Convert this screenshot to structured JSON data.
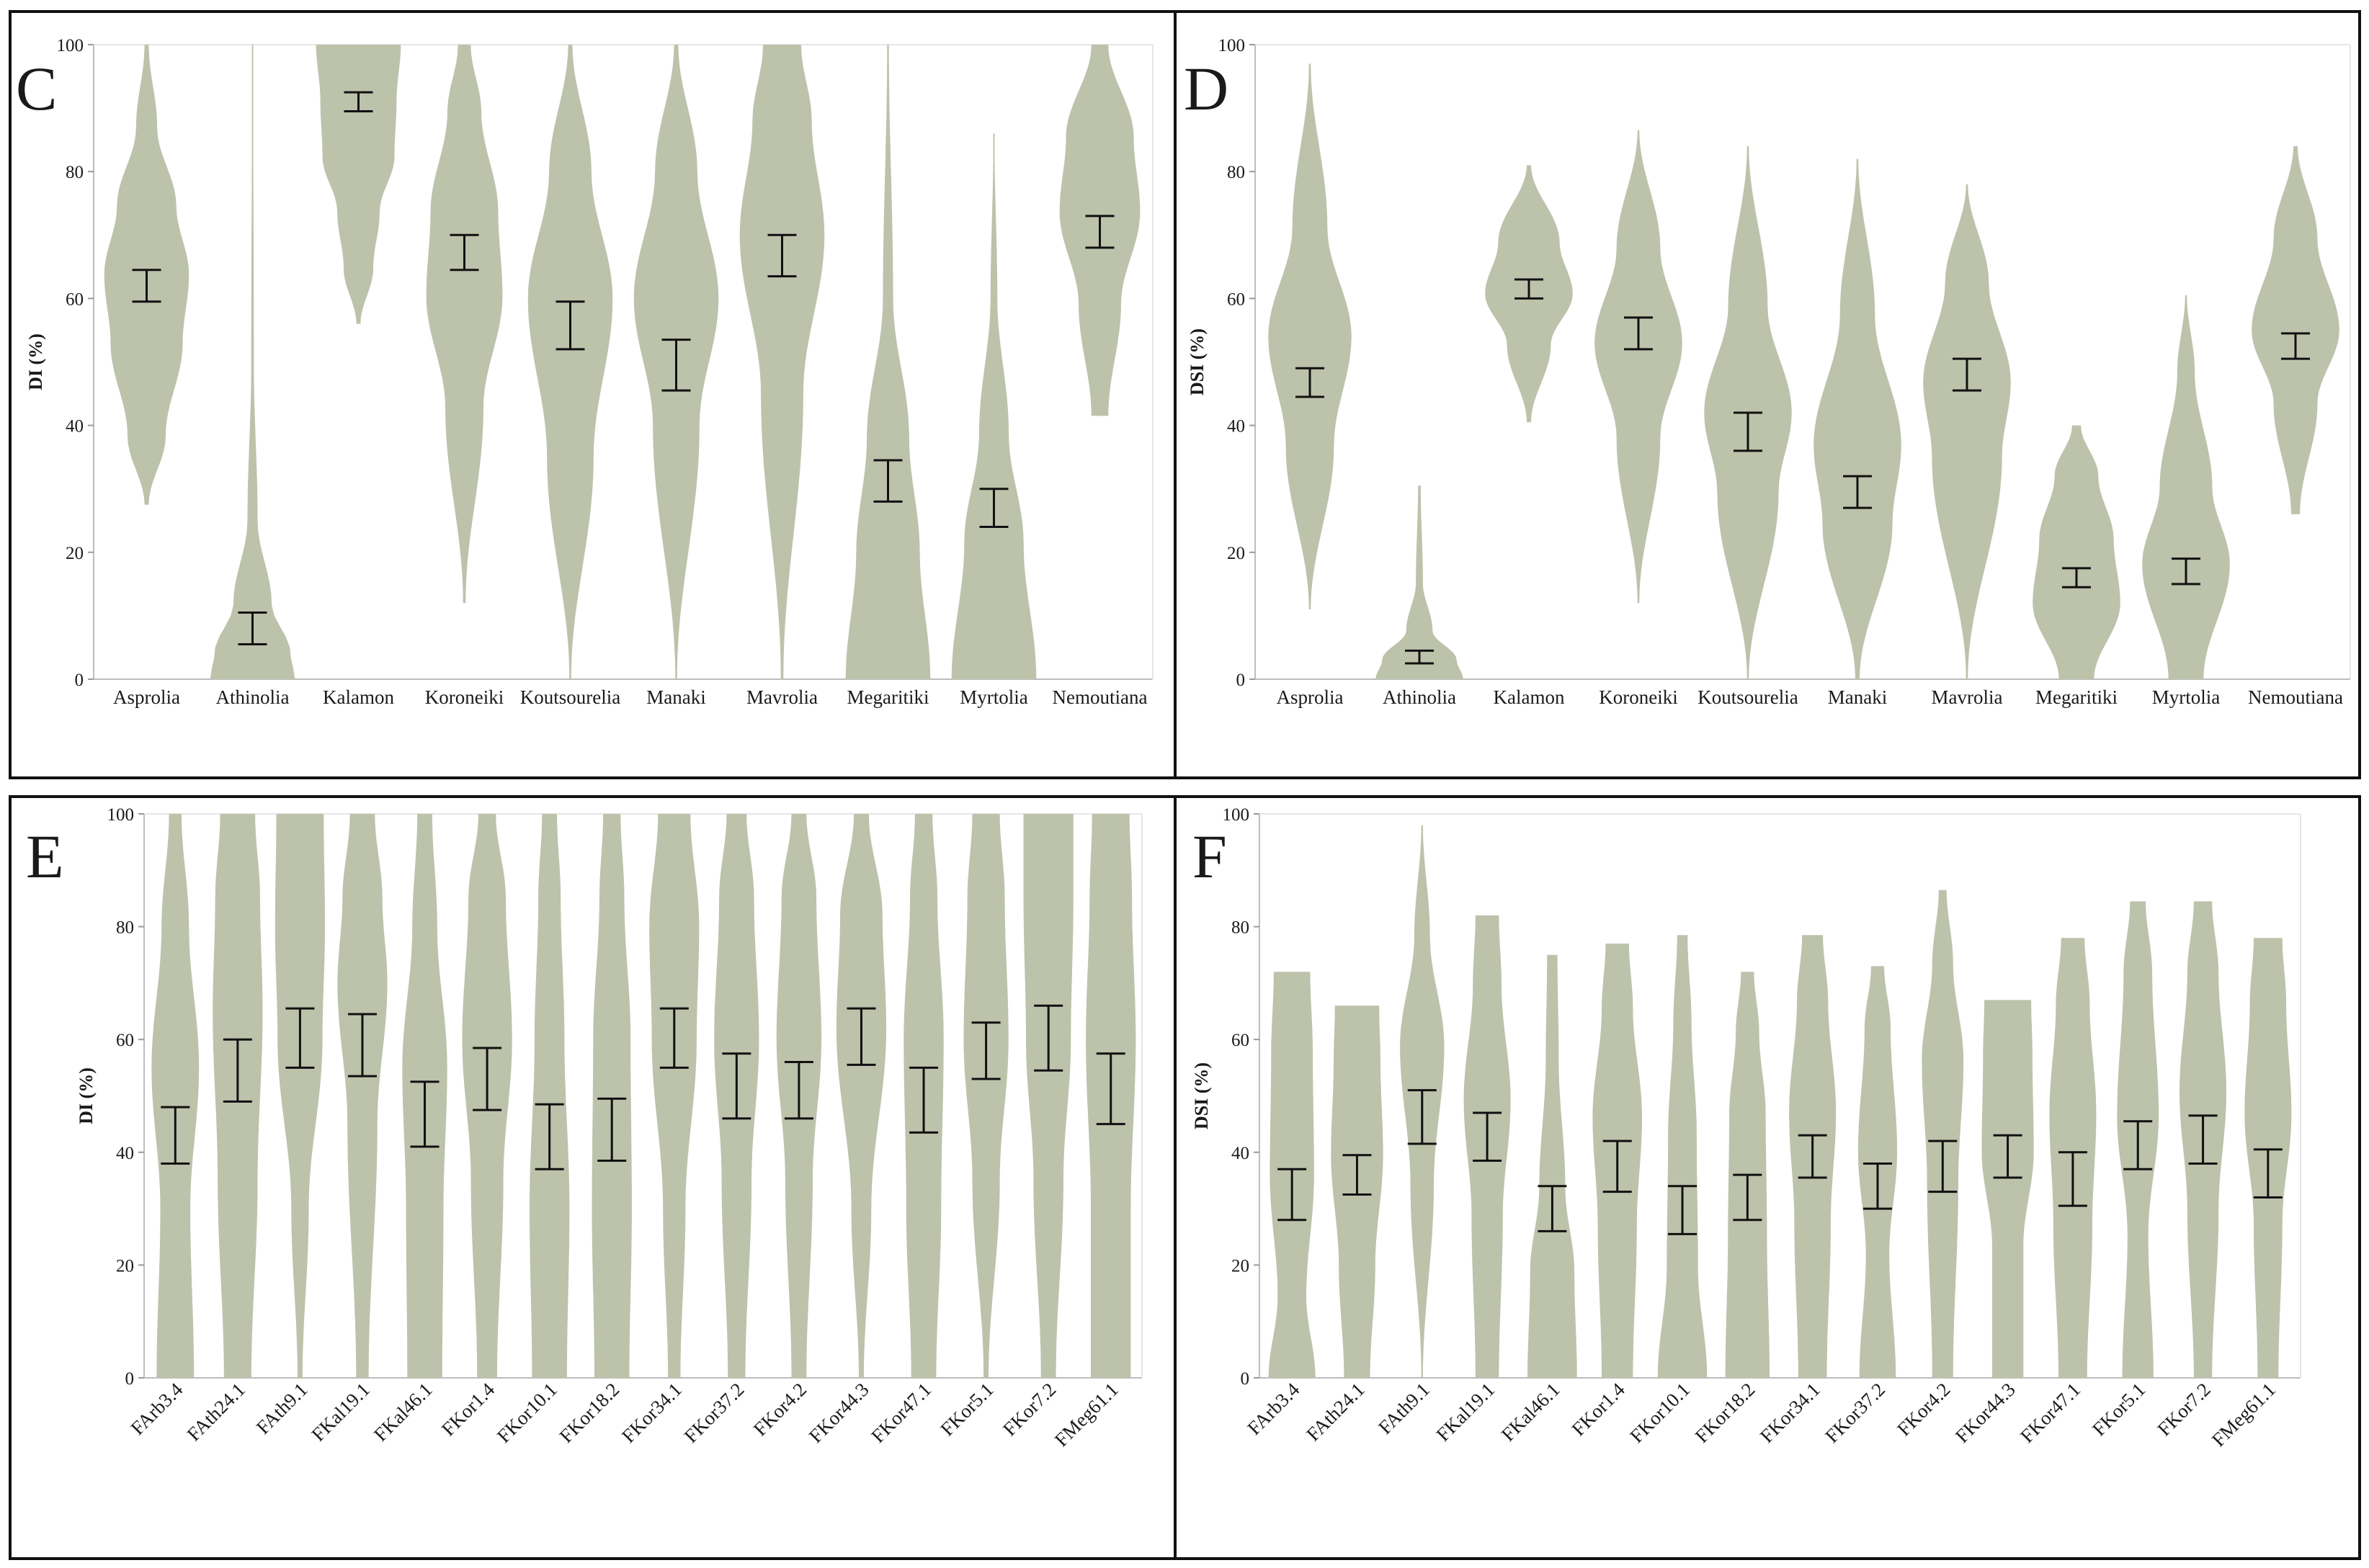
{
  "figure": {
    "violin_color": "#bdc2ab",
    "errorbar_color": "#111111",
    "frame_color": "#111111"
  },
  "chart_data": [
    {
      "panel": "C",
      "type": "violin",
      "ylabel": "DI (%)",
      "ylim": [
        0,
        100
      ],
      "yticks": [
        "0",
        "20",
        "40",
        "60",
        "80",
        "100"
      ],
      "categories": [
        "Asprolia",
        "Athinolia",
        "Kalamon",
        "Koroneiki",
        "Koutsourelia",
        "Manaki",
        "Mavrolia",
        "Megaritiki",
        "Myrtolia",
        "Nemoutiana"
      ],
      "ranges": [
        [
          27.5,
          100
        ],
        [
          0,
          100
        ],
        [
          56,
          100
        ],
        [
          12,
          100
        ],
        [
          0,
          100
        ],
        [
          0,
          100
        ],
        [
          0,
          100
        ],
        [
          0,
          100
        ],
        [
          0,
          86
        ],
        [
          41.5,
          100
        ]
      ],
      "error_bars": [
        [
          59.5,
          64.5
        ],
        [
          5.5,
          10.5
        ],
        [
          89.5,
          92.5
        ],
        [
          64.5,
          70
        ],
        [
          52,
          59.5
        ],
        [
          45.5,
          53.5
        ],
        [
          63.5,
          70
        ],
        [
          28,
          34.5
        ],
        [
          24,
          30
        ],
        [
          68,
          73
        ]
      ]
    },
    {
      "panel": "D",
      "type": "violin",
      "ylabel": "DSI (%)",
      "ylim": [
        0,
        100
      ],
      "yticks": [
        "0",
        "20",
        "40",
        "60",
        "80",
        "100"
      ],
      "categories": [
        "Asprolia",
        "Athinolia",
        "Kalamon",
        "Koroneiki",
        "Koutsourelia",
        "Manaki",
        "Mavrolia",
        "Megaritiki",
        "Myrtolia",
        "Nemoutiana"
      ],
      "ranges": [
        [
          11,
          97
        ],
        [
          0,
          30.5
        ],
        [
          40.5,
          81
        ],
        [
          12,
          86.5
        ],
        [
          0,
          84
        ],
        [
          0,
          82
        ],
        [
          0,
          78
        ],
        [
          0,
          40
        ],
        [
          0,
          60.5
        ],
        [
          26,
          84
        ]
      ],
      "error_bars": [
        [
          44.5,
          49
        ],
        [
          2.5,
          4.5
        ],
        [
          60,
          63
        ],
        [
          52,
          57
        ],
        [
          36,
          42
        ],
        [
          27,
          32
        ],
        [
          45.5,
          50.5
        ],
        [
          14.5,
          17.5
        ],
        [
          15,
          19
        ],
        [
          50.5,
          54.5
        ]
      ]
    },
    {
      "panel": "E",
      "type": "violin",
      "ylabel": "DI (%)",
      "ylim": [
        0,
        100
      ],
      "yticks": [
        "0",
        "20",
        "40",
        "60",
        "80",
        "100"
      ],
      "categories": [
        "FArb3.4",
        "FAth24.1",
        "FAth9.1",
        "FKal19.1",
        "FKal46.1",
        "FKor1.4",
        "FKor10.1",
        "FKor18.2",
        "FKor34.1",
        "FKor37.2",
        "FKor4.2",
        "FKor44.3",
        "FKor47.1",
        "FKor5.1",
        "FKor7.2",
        "FMeg61.1"
      ],
      "ranges": [
        [
          0,
          100
        ],
        [
          0,
          100
        ],
        [
          0,
          100
        ],
        [
          0,
          100
        ],
        [
          0,
          100
        ],
        [
          0,
          100
        ],
        [
          0,
          100
        ],
        [
          0,
          100
        ],
        [
          0,
          100
        ],
        [
          0,
          100
        ],
        [
          0,
          100
        ],
        [
          0,
          100
        ],
        [
          0,
          100
        ],
        [
          0,
          100
        ],
        [
          0,
          100
        ],
        [
          0,
          100
        ]
      ],
      "error_bars": [
        [
          38,
          48
        ],
        [
          49,
          60
        ],
        [
          55,
          65.5
        ],
        [
          53.5,
          64.5
        ],
        [
          41,
          52.5
        ],
        [
          47.5,
          58.5
        ],
        [
          37,
          48.5
        ],
        [
          38.5,
          49.5
        ],
        [
          55,
          65.5
        ],
        [
          46,
          57.5
        ],
        [
          46,
          56
        ],
        [
          55.5,
          65.5
        ],
        [
          43.5,
          55
        ],
        [
          53,
          63
        ],
        [
          54.5,
          66
        ],
        [
          45,
          57.5
        ]
      ]
    },
    {
      "panel": "F",
      "type": "violin",
      "ylabel": "DSI (%)",
      "ylim": [
        0,
        100
      ],
      "yticks": [
        "0",
        "20",
        "40",
        "60",
        "80",
        "100"
      ],
      "categories": [
        "FArb3.4",
        "FAth24.1",
        "FAth9.1",
        "FKal19.1",
        "FKal46.1",
        "FKor1.4",
        "FKor10.1",
        "FKor18.2",
        "FKor34.1",
        "FKor37.2",
        "FKor4.2",
        "FKor44.3",
        "FKor47.1",
        "FKor5.1",
        "FKor7.2",
        "FMeg61.1"
      ],
      "ranges": [
        [
          0,
          72
        ],
        [
          0,
          66
        ],
        [
          0,
          98
        ],
        [
          0,
          82
        ],
        [
          0,
          75
        ],
        [
          0,
          77
        ],
        [
          0,
          78.5
        ],
        [
          0,
          72
        ],
        [
          0,
          78.5
        ],
        [
          0,
          73
        ],
        [
          0,
          86.5
        ],
        [
          0,
          67
        ],
        [
          0,
          78
        ],
        [
          0,
          84.5
        ],
        [
          0,
          84.5
        ],
        [
          0,
          78
        ]
      ],
      "error_bars": [
        [
          28,
          37
        ],
        [
          32.5,
          39.5
        ],
        [
          41.5,
          51
        ],
        [
          38.5,
          47
        ],
        [
          26,
          34
        ],
        [
          33,
          42
        ],
        [
          25.5,
          34
        ],
        [
          28,
          36
        ],
        [
          35.5,
          43
        ],
        [
          30,
          38
        ],
        [
          33,
          42
        ],
        [
          35.5,
          43
        ],
        [
          30.5,
          40
        ],
        [
          37,
          45.5
        ],
        [
          38,
          46.5
        ],
        [
          32,
          40.5
        ]
      ]
    }
  ]
}
